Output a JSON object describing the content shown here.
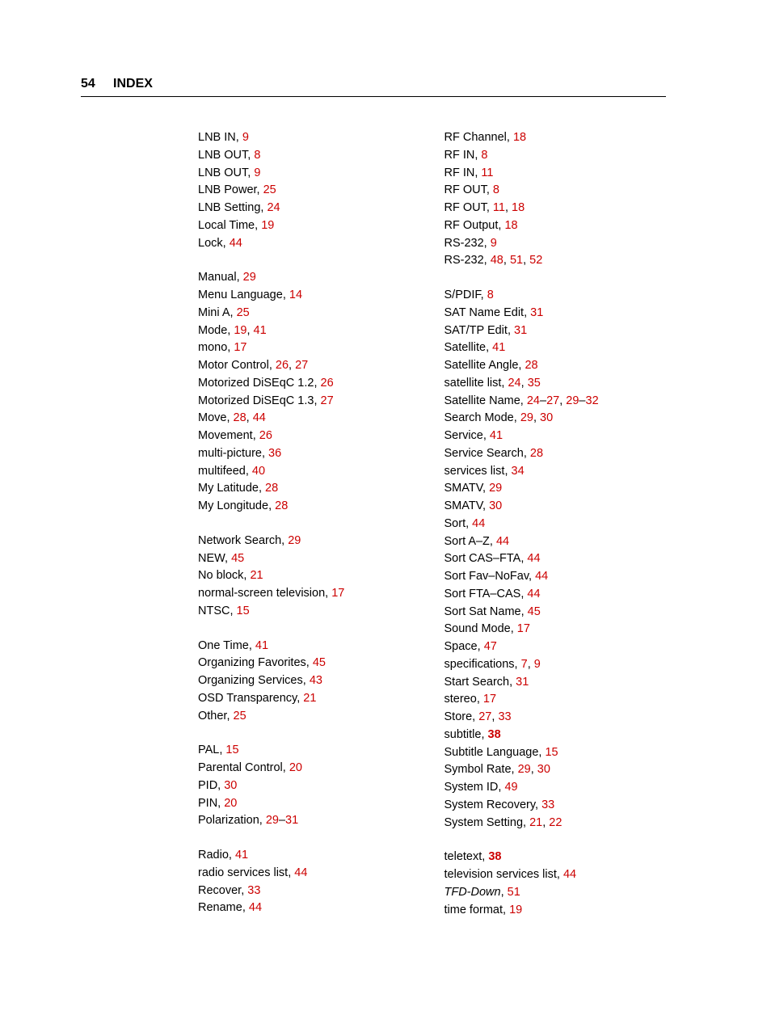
{
  "header": {
    "page_number": "54",
    "title": "INDEX"
  },
  "colors": {
    "link": "#cc0000",
    "text": "#000000",
    "background": "#ffffff"
  },
  "left_column": [
    {
      "type": "entry",
      "term": "LNB IN",
      "pages": [
        {
          "t": "9"
        }
      ]
    },
    {
      "type": "entry",
      "term": "LNB OUT",
      "pages": [
        {
          "t": "8"
        }
      ]
    },
    {
      "type": "entry",
      "term": "LNB OUT",
      "pages": [
        {
          "t": "9"
        }
      ]
    },
    {
      "type": "entry",
      "term": "LNB Power",
      "pages": [
        {
          "t": "25"
        }
      ]
    },
    {
      "type": "entry",
      "term": "LNB Setting",
      "pages": [
        {
          "t": "24"
        }
      ]
    },
    {
      "type": "entry",
      "term": "Local Time",
      "pages": [
        {
          "t": "19"
        }
      ]
    },
    {
      "type": "entry",
      "term": "Lock",
      "pages": [
        {
          "t": "44"
        }
      ]
    },
    {
      "type": "gap"
    },
    {
      "type": "entry",
      "term": "Manual",
      "pages": [
        {
          "t": "29"
        }
      ]
    },
    {
      "type": "entry",
      "term": "Menu Language",
      "pages": [
        {
          "t": "14"
        }
      ]
    },
    {
      "type": "entry",
      "term": "Mini A",
      "pages": [
        {
          "t": "25"
        }
      ]
    },
    {
      "type": "entry",
      "term": "Mode",
      "pages": [
        {
          "t": "19"
        },
        {
          "t": "41"
        }
      ]
    },
    {
      "type": "entry",
      "term": "mono",
      "pages": [
        {
          "t": "17"
        }
      ]
    },
    {
      "type": "entry",
      "term": "Motor Control",
      "pages": [
        {
          "t": "26"
        },
        {
          "t": "27"
        }
      ]
    },
    {
      "type": "entry",
      "term": "Motorized DiSEqC 1.2",
      "pages": [
        {
          "t": "26"
        }
      ]
    },
    {
      "type": "entry",
      "term": "Motorized DiSEqC 1.3",
      "pages": [
        {
          "t": "27"
        }
      ]
    },
    {
      "type": "entry",
      "term": "Move",
      "pages": [
        {
          "t": "28"
        },
        {
          "t": "44"
        }
      ]
    },
    {
      "type": "entry",
      "term": "Movement",
      "pages": [
        {
          "t": "26"
        }
      ]
    },
    {
      "type": "entry",
      "term": "multi-picture",
      "pages": [
        {
          "t": "36"
        }
      ]
    },
    {
      "type": "entry",
      "term": "multifeed",
      "pages": [
        {
          "t": "40"
        }
      ]
    },
    {
      "type": "entry",
      "term": "My Latitude",
      "pages": [
        {
          "t": "28"
        }
      ]
    },
    {
      "type": "entry",
      "term": "My Longitude",
      "pages": [
        {
          "t": "28"
        }
      ]
    },
    {
      "type": "gap"
    },
    {
      "type": "entry",
      "term": "Network Search",
      "pages": [
        {
          "t": "29"
        }
      ]
    },
    {
      "type": "entry",
      "term": "NEW",
      "pages": [
        {
          "t": "45"
        }
      ]
    },
    {
      "type": "entry",
      "term": "No block",
      "pages": [
        {
          "t": "21"
        }
      ]
    },
    {
      "type": "entry",
      "term": "normal-screen television",
      "pages": [
        {
          "t": "17"
        }
      ]
    },
    {
      "type": "entry",
      "term": "NTSC",
      "pages": [
        {
          "t": "15"
        }
      ]
    },
    {
      "type": "gap"
    },
    {
      "type": "entry",
      "term": "One Time",
      "pages": [
        {
          "t": "41"
        }
      ]
    },
    {
      "type": "entry",
      "term": "Organizing Favorites",
      "pages": [
        {
          "t": "45"
        }
      ]
    },
    {
      "type": "entry",
      "term": "Organizing Services",
      "pages": [
        {
          "t": "43"
        }
      ]
    },
    {
      "type": "entry",
      "term": "OSD Transparency",
      "pages": [
        {
          "t": "21"
        }
      ]
    },
    {
      "type": "entry",
      "term": "Other",
      "pages": [
        {
          "t": "25"
        }
      ]
    },
    {
      "type": "gap"
    },
    {
      "type": "entry",
      "term": "PAL",
      "pages": [
        {
          "t": "15"
        }
      ]
    },
    {
      "type": "entry",
      "term": "Parental Control",
      "pages": [
        {
          "t": "20"
        }
      ]
    },
    {
      "type": "entry",
      "term": "PID",
      "pages": [
        {
          "t": "30"
        }
      ]
    },
    {
      "type": "entry",
      "term": "PIN",
      "pages": [
        {
          "t": "20"
        }
      ]
    },
    {
      "type": "entry",
      "term": "Polarization",
      "pages": [
        {
          "t": "29",
          "range": "31"
        }
      ]
    },
    {
      "type": "gap"
    },
    {
      "type": "entry",
      "term": "Radio",
      "pages": [
        {
          "t": "41"
        }
      ]
    },
    {
      "type": "entry",
      "term": "radio services list",
      "pages": [
        {
          "t": "44"
        }
      ]
    },
    {
      "type": "entry",
      "term": "Recover",
      "pages": [
        {
          "t": "33"
        }
      ]
    },
    {
      "type": "entry",
      "term": "Rename",
      "pages": [
        {
          "t": "44"
        }
      ]
    }
  ],
  "right_column": [
    {
      "type": "entry",
      "term": "RF Channel",
      "pages": [
        {
          "t": "18"
        }
      ]
    },
    {
      "type": "entry",
      "term": "RF IN",
      "pages": [
        {
          "t": "8"
        }
      ]
    },
    {
      "type": "entry",
      "term": "RF IN",
      "pages": [
        {
          "t": "11"
        }
      ]
    },
    {
      "type": "entry",
      "term": "RF OUT",
      "pages": [
        {
          "t": "8"
        }
      ]
    },
    {
      "type": "entry",
      "term": "RF OUT",
      "pages": [
        {
          "t": "11"
        },
        {
          "t": "18"
        }
      ]
    },
    {
      "type": "entry",
      "term": "RF Output",
      "pages": [
        {
          "t": "18"
        }
      ]
    },
    {
      "type": "entry",
      "term": "RS-232",
      "pages": [
        {
          "t": "9"
        }
      ]
    },
    {
      "type": "entry",
      "term": "RS-232",
      "pages": [
        {
          "t": "48"
        },
        {
          "t": "51"
        },
        {
          "t": "52"
        }
      ]
    },
    {
      "type": "gap"
    },
    {
      "type": "entry",
      "term": "S/PDIF",
      "pages": [
        {
          "t": "8"
        }
      ]
    },
    {
      "type": "entry",
      "term": "SAT Name Edit",
      "pages": [
        {
          "t": "31"
        }
      ]
    },
    {
      "type": "entry",
      "term": "SAT/TP Edit",
      "pages": [
        {
          "t": "31"
        }
      ]
    },
    {
      "type": "entry",
      "term": "Satellite",
      "pages": [
        {
          "t": "41"
        }
      ]
    },
    {
      "type": "entry",
      "term": "Satellite Angle",
      "pages": [
        {
          "t": "28"
        }
      ]
    },
    {
      "type": "entry",
      "term": "satellite list",
      "pages": [
        {
          "t": "24"
        },
        {
          "t": "35"
        }
      ]
    },
    {
      "type": "entry",
      "term": "Satellite Name",
      "pages": [
        {
          "t": "24",
          "range": "27"
        },
        {
          "t": "29",
          "range": "32"
        }
      ]
    },
    {
      "type": "entry",
      "term": "Search Mode",
      "pages": [
        {
          "t": "29"
        },
        {
          "t": "30"
        }
      ]
    },
    {
      "type": "entry",
      "term": "Service",
      "pages": [
        {
          "t": "41"
        }
      ]
    },
    {
      "type": "entry",
      "term": "Service Search",
      "pages": [
        {
          "t": "28"
        }
      ]
    },
    {
      "type": "entry",
      "term": "services list",
      "pages": [
        {
          "t": "34"
        }
      ]
    },
    {
      "type": "entry",
      "term": "SMATV",
      "pages": [
        {
          "t": "29"
        }
      ]
    },
    {
      "type": "entry",
      "term": "SMATV",
      "pages": [
        {
          "t": "30"
        }
      ]
    },
    {
      "type": "entry",
      "term": "Sort",
      "pages": [
        {
          "t": "44"
        }
      ]
    },
    {
      "type": "entry",
      "term": "Sort A–Z",
      "pages": [
        {
          "t": "44"
        }
      ]
    },
    {
      "type": "entry",
      "term": "Sort CAS–FTA",
      "pages": [
        {
          "t": "44"
        }
      ]
    },
    {
      "type": "entry",
      "term": "Sort Fav–NoFav",
      "pages": [
        {
          "t": "44"
        }
      ]
    },
    {
      "type": "entry",
      "term": "Sort FTA–CAS",
      "pages": [
        {
          "t": "44"
        }
      ]
    },
    {
      "type": "entry",
      "term": "Sort Sat Name",
      "pages": [
        {
          "t": "45"
        }
      ]
    },
    {
      "type": "entry",
      "term": "Sound Mode",
      "pages": [
        {
          "t": "17"
        }
      ]
    },
    {
      "type": "entry",
      "term": "Space",
      "pages": [
        {
          "t": "47"
        }
      ]
    },
    {
      "type": "entry",
      "term": "specifications",
      "pages": [
        {
          "t": "7"
        },
        {
          "t": "9"
        }
      ]
    },
    {
      "type": "entry",
      "term": "Start Search",
      "pages": [
        {
          "t": "31"
        }
      ]
    },
    {
      "type": "entry",
      "term": "stereo",
      "pages": [
        {
          "t": "17"
        }
      ]
    },
    {
      "type": "entry",
      "term": "Store",
      "pages": [
        {
          "t": "27"
        },
        {
          "t": "33"
        }
      ]
    },
    {
      "type": "entry",
      "term": "subtitle",
      "pages": [
        {
          "t": "38",
          "bold": true
        }
      ]
    },
    {
      "type": "entry",
      "term": "Subtitle Language",
      "pages": [
        {
          "t": "15"
        }
      ]
    },
    {
      "type": "entry",
      "term": "Symbol Rate",
      "pages": [
        {
          "t": "29"
        },
        {
          "t": "30"
        }
      ]
    },
    {
      "type": "entry",
      "term": "System ID",
      "pages": [
        {
          "t": "49"
        }
      ]
    },
    {
      "type": "entry",
      "term": "System Recovery",
      "pages": [
        {
          "t": "33"
        }
      ]
    },
    {
      "type": "entry",
      "term": "System Setting",
      "pages": [
        {
          "t": "21"
        },
        {
          "t": "22"
        }
      ]
    },
    {
      "type": "gap"
    },
    {
      "type": "entry",
      "term": "teletext",
      "pages": [
        {
          "t": "38",
          "bold": true
        }
      ]
    },
    {
      "type": "entry",
      "term": "television services list",
      "pages": [
        {
          "t": "44"
        }
      ]
    },
    {
      "type": "entry",
      "term": "TFD-Down",
      "italic": true,
      "pages": [
        {
          "t": "51"
        }
      ]
    },
    {
      "type": "entry",
      "term": "time format",
      "pages": [
        {
          "t": "19"
        }
      ]
    }
  ]
}
